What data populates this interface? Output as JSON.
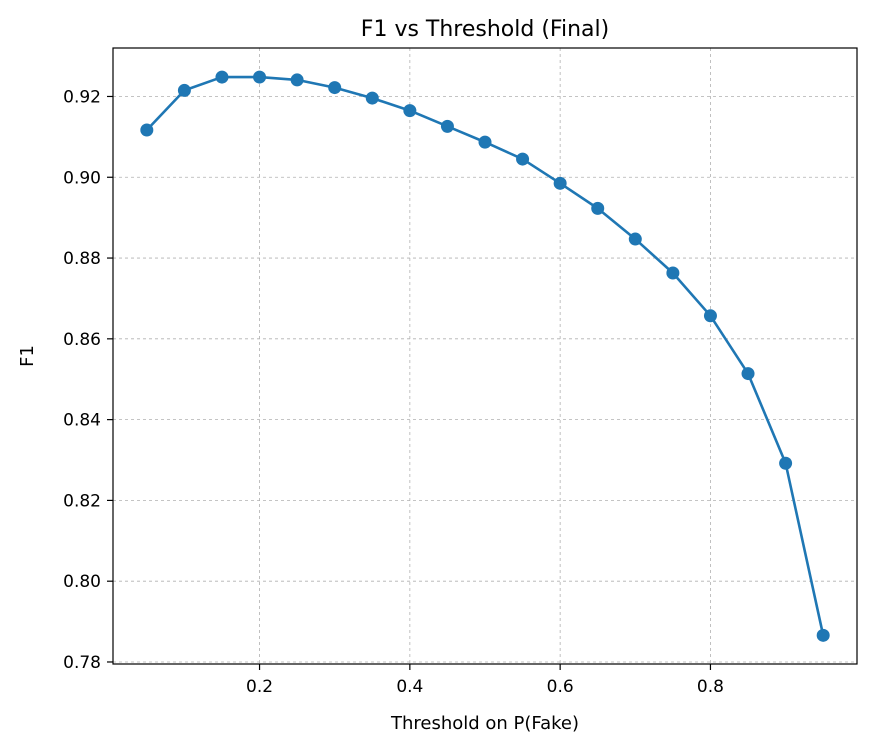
{
  "chart_data": {
    "type": "line",
    "title": "F1 vs Threshold (Final)",
    "xlabel": "Threshold on P(Fake)",
    "ylabel": "F1",
    "xlim": [
      0.005,
      0.995
    ],
    "ylim": [
      0.7795,
      0.932
    ],
    "xticks": [
      0.2,
      0.4,
      0.6,
      0.8
    ],
    "xtick_labels": [
      "0.2",
      "0.4",
      "0.6",
      "0.8"
    ],
    "yticks": [
      0.78,
      0.8,
      0.82,
      0.84,
      0.86,
      0.88,
      0.9,
      0.92
    ],
    "ytick_labels": [
      "0.78",
      "0.80",
      "0.82",
      "0.84",
      "0.86",
      "0.88",
      "0.90",
      "0.92"
    ],
    "grid": true,
    "marker": "circle",
    "color": "#1f77b4",
    "series": [
      {
        "x": [
          0.05,
          0.1,
          0.15,
          0.2,
          0.25,
          0.3,
          0.35,
          0.4,
          0.45,
          0.5,
          0.55,
          0.6,
          0.65,
          0.7,
          0.75,
          0.8,
          0.85,
          0.9,
          0.95
        ],
        "y": [
          0.9117,
          0.9215,
          0.9248,
          0.9248,
          0.9241,
          0.9222,
          0.9196,
          0.9165,
          0.9126,
          0.9087,
          0.9045,
          0.8985,
          0.8923,
          0.8847,
          0.8763,
          0.8657,
          0.8514,
          0.8292,
          0.7866
        ]
      }
    ]
  }
}
